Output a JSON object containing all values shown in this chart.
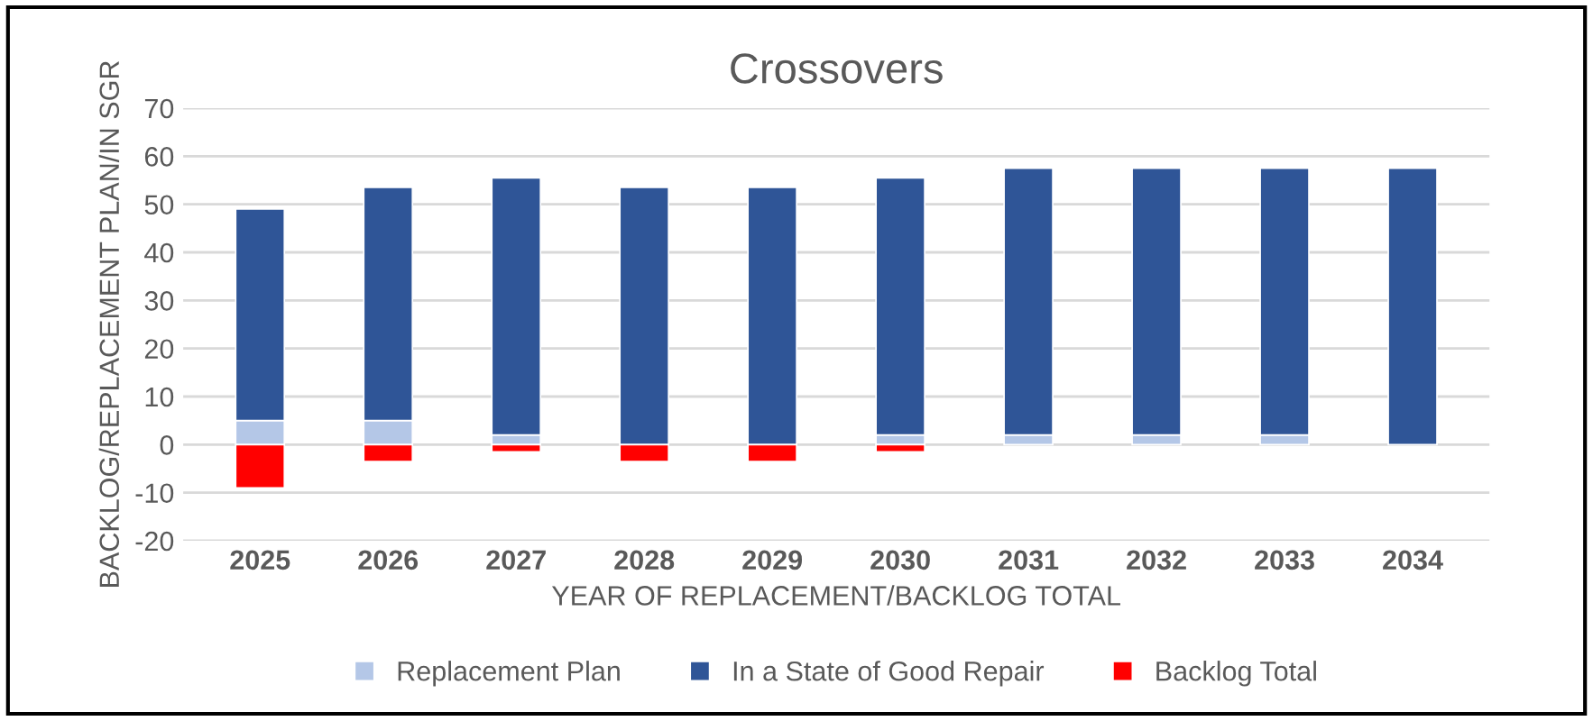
{
  "chart_data": {
    "type": "bar",
    "title": "Crossovers",
    "xlabel": "YEAR OF REPLACEMENT/BACKLOG TOTAL",
    "ylabel": "BACKLOG/REPLACEMENT PLAN/IN SGR",
    "categories": [
      "2025",
      "2026",
      "2027",
      "2028",
      "2029",
      "2030",
      "2031",
      "2032",
      "2033",
      "2034"
    ],
    "stacked": true,
    "series": [
      {
        "name": "Replacement Plan",
        "color": "#b4c7e7",
        "values": [
          5,
          5,
          2,
          null,
          null,
          2,
          2,
          2,
          2,
          null
        ]
      },
      {
        "name": "In a State of Good Repair",
        "color": "#2f5597",
        "values": [
          44,
          48.5,
          53.5,
          53.5,
          53.5,
          53.5,
          55.5,
          55.5,
          55.5,
          57.5
        ]
      },
      {
        "name": "Backlog Total",
        "color": "#ff0000",
        "values": [
          -9,
          -3.5,
          -1.5,
          -3.5,
          -3.5,
          -1.5,
          null,
          null,
          null,
          null
        ]
      }
    ],
    "ylim": [
      -20,
      70
    ],
    "yticks": [
      -20,
      -10,
      0,
      10,
      20,
      30,
      40,
      50,
      60,
      70
    ],
    "grid": "y",
    "legend": "bottom"
  }
}
